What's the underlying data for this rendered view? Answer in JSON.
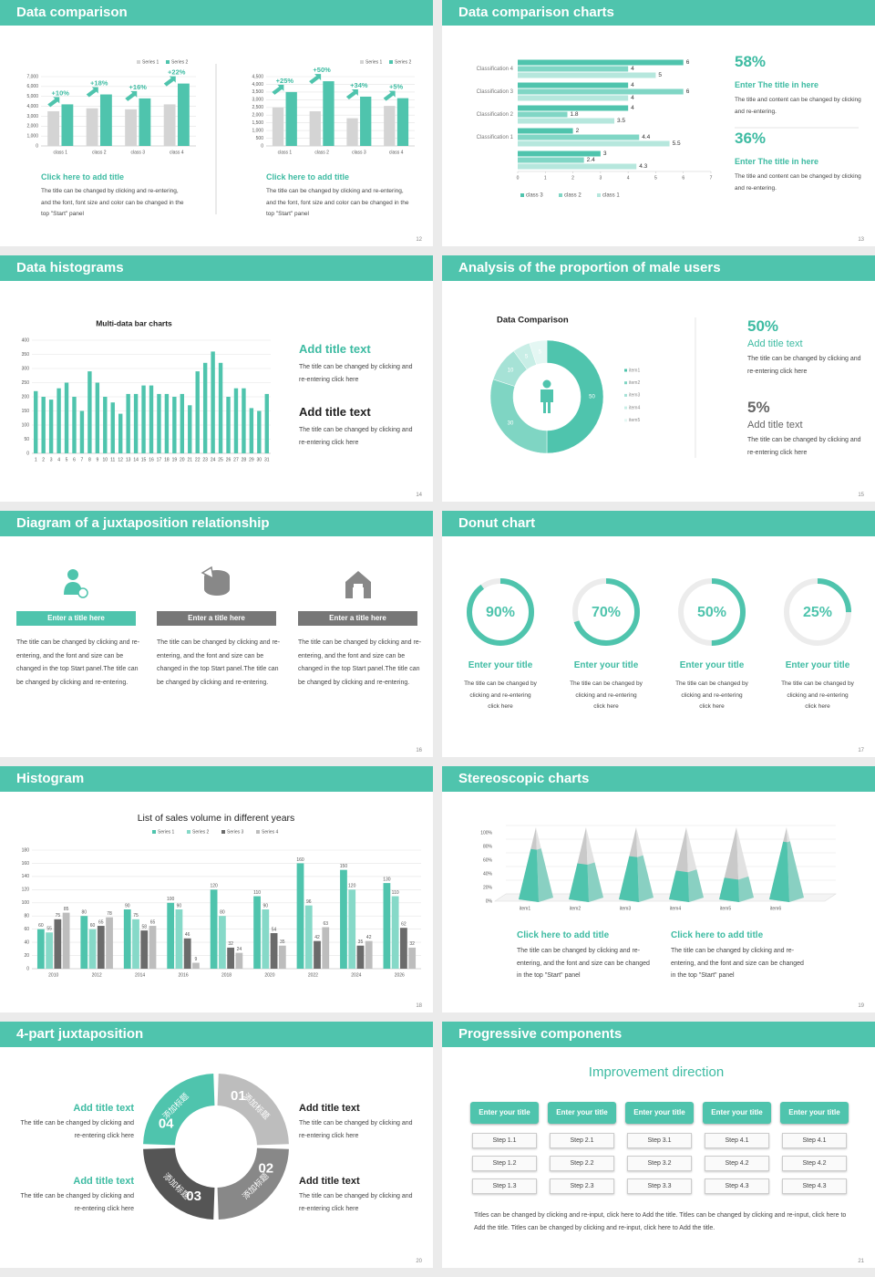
{
  "slides": [
    {
      "title": "Data comparison",
      "page": 12,
      "charts": [
        {
          "type": "bar",
          "categories": [
            "class 1",
            "class 2",
            "class 3",
            "class 4"
          ],
          "series": [
            {
              "name": "Series 1",
              "color": "#d4d4d4",
              "values": [
                3500,
                3800,
                3700,
                4200
              ]
            },
            {
              "name": "Series 2",
              "color": "#4fc4ad",
              "values": [
                4200,
                5200,
                4800,
                6300
              ]
            }
          ],
          "ylim": [
            0,
            7000
          ],
          "yticks": [
            0,
            {
              "value": 1000,
              "label": "1,000"
            },
            {
              "value": 2000,
              "label": "2,000"
            },
            {
              "value": 3000,
              "label": "3,000"
            },
            {
              "value": 4000,
              "label": "4,000"
            },
            {
              "value": 5000,
              "label": "5,000"
            },
            {
              "value": 6000,
              "label": "6,000"
            },
            {
              "value": 7000,
              "label": "7,000"
            }
          ],
          "grid": true,
          "annotations": [
            "+10%",
            "+18%",
            "+16%",
            "+22%"
          ]
        },
        {
          "type": "bar",
          "categories": [
            "class 1",
            "class 2",
            "class 3",
            "class 4"
          ],
          "series": [
            {
              "name": "Series 1",
              "color": "#d4d4d4",
              "values": [
                2500,
                2250,
                1800,
                2600
              ]
            },
            {
              "name": "Series 2",
              "color": "#4fc4ad",
              "values": [
                3500,
                4200,
                3200,
                3100
              ]
            }
          ],
          "ylim": [
            0,
            4500
          ],
          "yticks": [
            0,
            500,
            {
              "value": 1000,
              "label": "1,000"
            },
            {
              "value": 1500,
              "label": "1,500"
            },
            {
              "value": 2000,
              "label": "2,000"
            },
            {
              "value": 2500,
              "label": "2,500"
            },
            {
              "value": 3000,
              "label": "3,000"
            },
            {
              "value": 3500,
              "label": "3,500"
            },
            {
              "value": 4000,
              "label": "4,000"
            },
            {
              "value": 4500,
              "label": "4,500"
            }
          ],
          "grid": true,
          "annotations": [
            "+25%",
            "+50%",
            "+34%",
            "+5%"
          ]
        }
      ],
      "captions": [
        {
          "heading": "Click here to add title",
          "text": "The title can be changed by clicking and re-entering, and the font, font size and color can be changed in the top \"Start\" panel"
        },
        {
          "heading": "Click here to add title",
          "text": "The title can be changed by clicking and re-entering, and the font, font size and color can be changed in the top \"Start\" panel"
        }
      ]
    },
    {
      "title": "Data comparison charts",
      "page": 13,
      "charts": [
        {
          "type": "hbar",
          "categories": [
            "Classification 4",
            "Classification 3",
            "Classification 2",
            "Classification 1",
            null
          ],
          "series": [
            {
              "name": "class 3",
              "color": "#4fc4ad",
              "values": [
                6,
                4,
                4,
                2,
                3
              ]
            },
            {
              "name": "class 2",
              "color": "#80d6c5",
              "values": [
                4,
                6,
                1.8,
                4.4,
                2.4
              ]
            },
            {
              "name": "class 1",
              "color": "#b6e7dd",
              "values": [
                5,
                4,
                3.5,
                5.5,
                4.3
              ]
            }
          ],
          "xlim": [
            0,
            7
          ],
          "xticks": [
            0,
            1,
            2,
            3,
            4,
            5,
            6,
            7
          ],
          "data_labels": true
        }
      ],
      "stats": [
        {
          "value": "58%",
          "heading": "Enter The title in here",
          "text": "The title and content can be changed by clicking and re-entering."
        },
        {
          "value": "36%",
          "heading": "Enter The title in here",
          "text": "The title and content can be changed by clicking and re-entering."
        }
      ]
    },
    {
      "title": "Data histograms",
      "page": 14,
      "charts": [
        {
          "type": "bar",
          "title": "Multi-data bar charts",
          "categories": [
            "1",
            "2",
            "3",
            "4",
            "5",
            "6",
            "7",
            "8",
            "9",
            "10",
            "11",
            "12",
            "13",
            "14",
            "15",
            "16",
            "17",
            "18",
            "19",
            "20",
            "21",
            "22",
            "23",
            "24",
            "25",
            "26",
            "27",
            "28",
            "29",
            "30",
            "31"
          ],
          "values": [
            220,
            200,
            190,
            230,
            250,
            200,
            150,
            290,
            250,
            200,
            180,
            140,
            210,
            210,
            240,
            240,
            210,
            210,
            200,
            210,
            170,
            290,
            320,
            360,
            320,
            200,
            230,
            230,
            160,
            150,
            210
          ],
          "color": "#4fc4ad",
          "ylim": [
            0,
            400
          ],
          "yticks": [
            0,
            50,
            100,
            150,
            200,
            250,
            300,
            350,
            400
          ],
          "grid": true
        }
      ],
      "items": [
        {
          "heading": "Add title text",
          "text": "The title can be changed by clicking and re-entering click here"
        },
        {
          "heading": "Add title text",
          "text": "The title can be changed by clicking and re-entering click here"
        }
      ]
    },
    {
      "title": "Analysis of the proportion of male users",
      "page": 15,
      "charts": [
        {
          "type": "donut",
          "title": "Data Comparison",
          "categories": [
            "item1",
            "item2",
            "item3",
            "item4",
            "item5"
          ],
          "values": [
            50,
            30,
            10,
            5,
            5
          ],
          "colors": [
            "#4fc4ad",
            "#7fd5c3",
            "#a6e2d6",
            "#c8eee6",
            "#e4f7f3"
          ]
        }
      ],
      "stats": [
        {
          "value": "50%",
          "heading": "Add title text",
          "text": "The title can be changed by clicking and re-entering click here"
        },
        {
          "value": "5%",
          "heading": "Add title text",
          "text": "The title can be changed by clicking and re-entering click here"
        }
      ]
    },
    {
      "title": "Diagram of a juxtaposition relationship",
      "page": 16,
      "charts": [],
      "columns": [
        {
          "heading": "Enter a title here",
          "text": "The title can be changed by clicking and re-entering, and the font and size can be changed in the top Start panel.The title can be changed by clicking and re-entering."
        },
        {
          "heading": "Enter a title here",
          "text": "The title can be changed by clicking and re-entering, and the font and size can be changed in the top Start panel.The title can be changed by clicking and re-entering."
        },
        {
          "heading": "Enter a title here",
          "text": "The title can be changed by clicking and re-entering, and the font and size can be changed in the top Start panel.The title can be changed by clicking and re-entering."
        }
      ]
    },
    {
      "title": "Donut chart",
      "page": 17,
      "charts": [
        {
          "type": "ring",
          "values": [
            90,
            70,
            50,
            25
          ],
          "value_labels": [
            "90%",
            "70%",
            "50%",
            "25%"
          ],
          "color": "#4fc4ad"
        }
      ],
      "items": [
        {
          "heading": "Enter your title",
          "text": "The title can be changed by clicking and re-entering click here"
        },
        {
          "heading": "Enter your title",
          "text": "The title can be changed by clicking and re-entering click here"
        },
        {
          "heading": "Enter your title",
          "text": "The title can be changed by clicking and re-entering click here"
        },
        {
          "heading": "Enter your title",
          "text": "The title can be changed by clicking and re-entering click here"
        }
      ]
    },
    {
      "title": "Histogram",
      "page": 18,
      "charts": [
        {
          "type": "bar",
          "title": "List of sales volume in different years",
          "categories": [
            "2010",
            "2012",
            "2014",
            "2016",
            "2018",
            "2020",
            "2022",
            "2024",
            "2026"
          ],
          "series": [
            {
              "name": "Series 1",
              "color": "#4fc4ad",
              "values": [
                60,
                80,
                90,
                100,
                120,
                110,
                160,
                150,
                130
              ]
            },
            {
              "name": "Series 2",
              "color": "#86d9c8",
              "values": [
                55,
                60,
                75,
                90,
                80,
                90,
                96,
                120,
                110
              ]
            },
            {
              "name": "Series 3",
              "color": "#6b6b6b",
              "values": [
                75,
                65,
                58,
                46,
                32,
                54,
                42,
                35,
                62
              ]
            },
            {
              "name": "Series 4",
              "color": "#bdbdbd",
              "values": [
                85,
                78,
                65,
                9,
                24,
                35,
                63,
                42,
                32
              ]
            }
          ],
          "ylim": [
            0,
            180
          ],
          "yticks": [
            0,
            20,
            40,
            60,
            80,
            100,
            120,
            140,
            160,
            180
          ],
          "grid": true,
          "data_labels": true
        }
      ]
    },
    {
      "title": "Stereoscopic charts",
      "page": 19,
      "charts": [
        {
          "type": "pyramid",
          "categories": [
            "item1",
            "item2",
            "item3",
            "item4",
            "item5",
            "item6"
          ],
          "values": [
            70,
            50,
            60,
            40,
            30,
            80
          ],
          "color": "#4fc4ad",
          "ylim": [
            0,
            100
          ],
          "yticks": [
            {
              "value": 0,
              "label": "0%"
            },
            {
              "value": 20,
              "label": "20%"
            },
            {
              "value": 40,
              "label": "40%"
            },
            {
              "value": 60,
              "label": "60%"
            },
            {
              "value": 80,
              "label": "80%"
            },
            {
              "value": 100,
              "label": "100%"
            }
          ],
          "grid": true
        }
      ],
      "items": [
        {
          "heading": "Click here to add title",
          "text": "The title can be changed by clicking and re-entering, and the font and size can be changed in the top \"Start\" panel"
        },
        {
          "heading": "Click here to add title",
          "text": "The title can be changed by clicking and re-entering, and the font and size can be changed in the top \"Start\" panel"
        }
      ]
    },
    {
      "title": "4-part juxtaposition",
      "page": 20,
      "charts": [],
      "segments": [
        {
          "number": "01",
          "label": "添加标题"
        },
        {
          "number": "02",
          "label": "添加标题"
        },
        {
          "number": "03",
          "label": "添加标题"
        },
        {
          "number": "04",
          "label": "添加标题"
        }
      ],
      "items": [
        {
          "heading": "Add title text",
          "text": "The title can be changed by clicking and re-entering click here"
        },
        {
          "heading": "Add title text",
          "text": "The title can be changed by clicking and re-entering click here"
        },
        {
          "heading": "Add title text",
          "text": "The title can be changed by clicking and re-entering click here"
        },
        {
          "heading": "Add title text",
          "text": "The title can be changed by clicking and re-entering click here"
        }
      ]
    },
    {
      "title": "Progressive components",
      "page": 21,
      "charts": [],
      "heading": "Improvement direction",
      "columns": [
        {
          "title": "Enter your title",
          "steps": [
            "Step 1.1",
            "Step 1.2",
            "Step 1.3"
          ]
        },
        {
          "title": "Enter your title",
          "steps": [
            "Step 2.1",
            "Step 2.2",
            "Step 2.3"
          ]
        },
        {
          "title": "Enter your title",
          "steps": [
            "Step 3.1",
            "Step 3.2",
            "Step 3.3"
          ]
        },
        {
          "title": "Enter your title",
          "steps": [
            "Step 4.1",
            "Step 4.2",
            "Step 4.3"
          ]
        },
        {
          "title": "Enter your title",
          "steps": [
            "Step 4.1",
            "Step 4.2",
            "Step 4.3"
          ]
        }
      ],
      "note": "Titles can be changed by clicking and re-input, click here to Add the title. Titles can be changed by clicking and re-input, click here to Add the title. Titles can be changed by clicking and re-input, click here to Add the title."
    }
  ]
}
